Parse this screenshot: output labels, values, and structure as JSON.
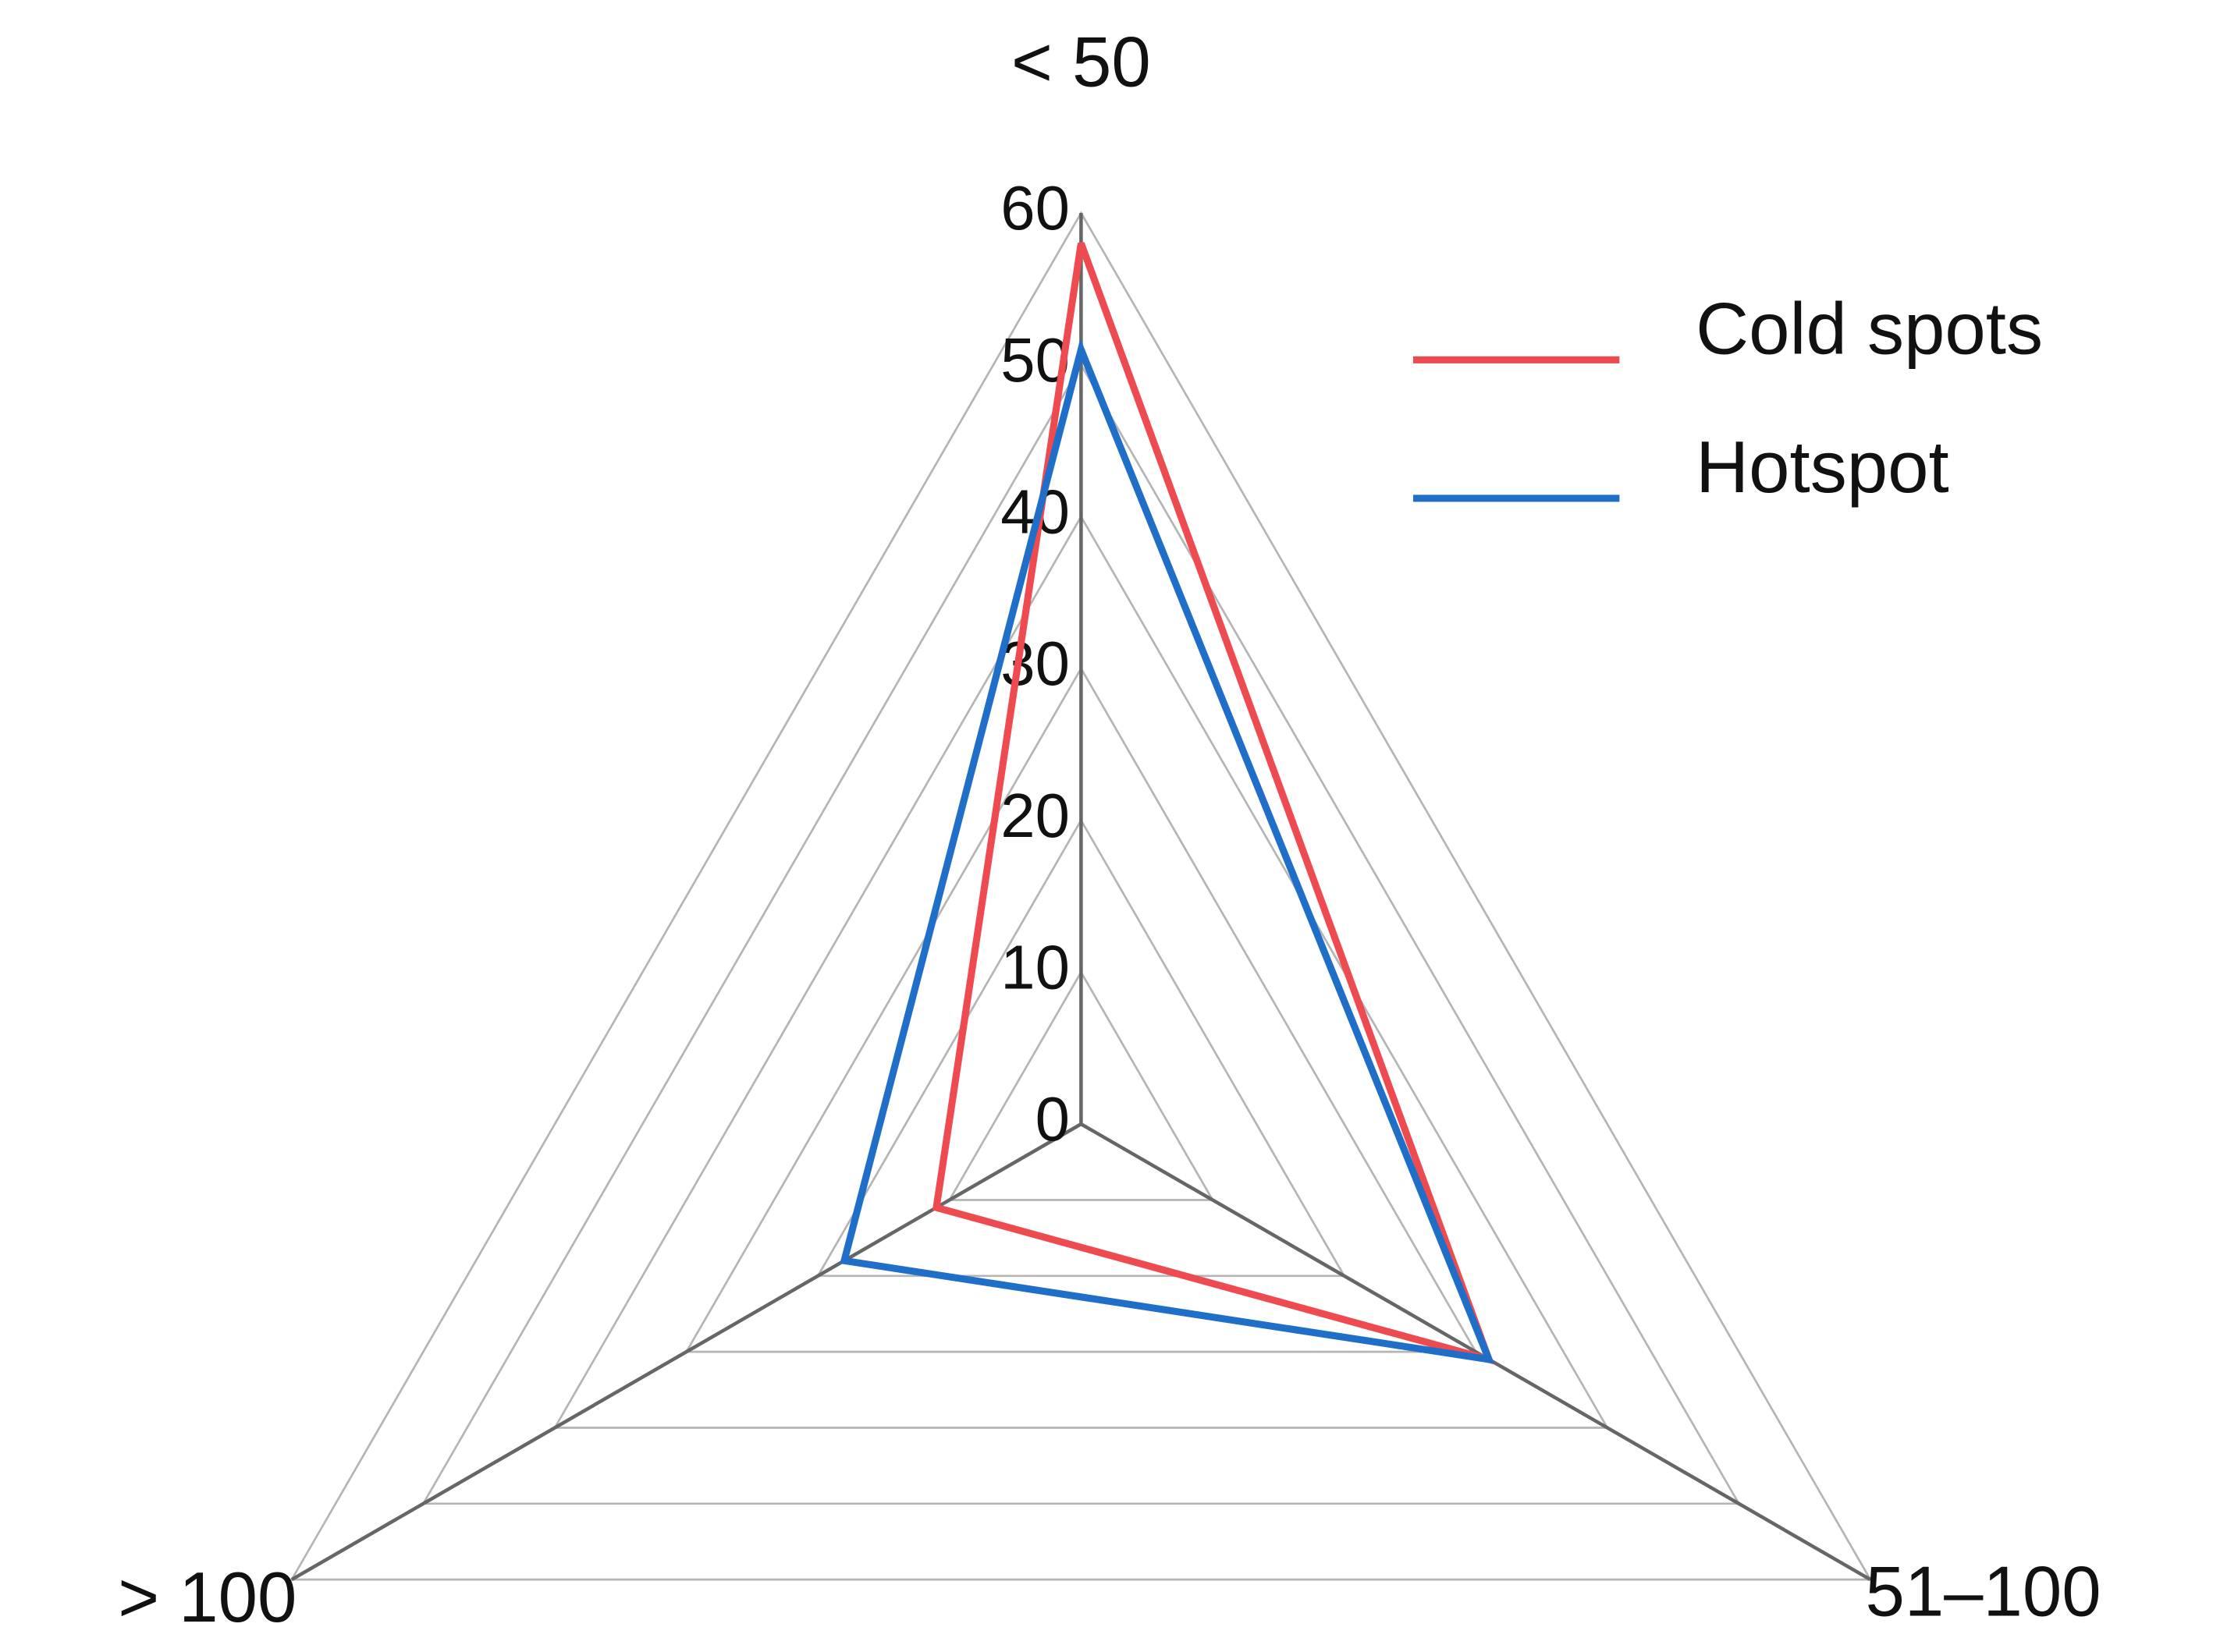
{
  "chart_data": {
    "type": "radar",
    "categories": [
      "< 50",
      "51–100",
      "> 100"
    ],
    "series": [
      {
        "name": "Cold spots",
        "color": "#ee4b50",
        "values": [
          58,
          31,
          11
        ]
      },
      {
        "name": "Hotspot",
        "color": "#1f6fc8",
        "values": [
          51,
          31,
          18
        ]
      }
    ],
    "ylim": [
      0,
      60
    ],
    "yticks": [
      0,
      10,
      20,
      30,
      40,
      50,
      60
    ],
    "grid": true,
    "legend": "upper right"
  }
}
